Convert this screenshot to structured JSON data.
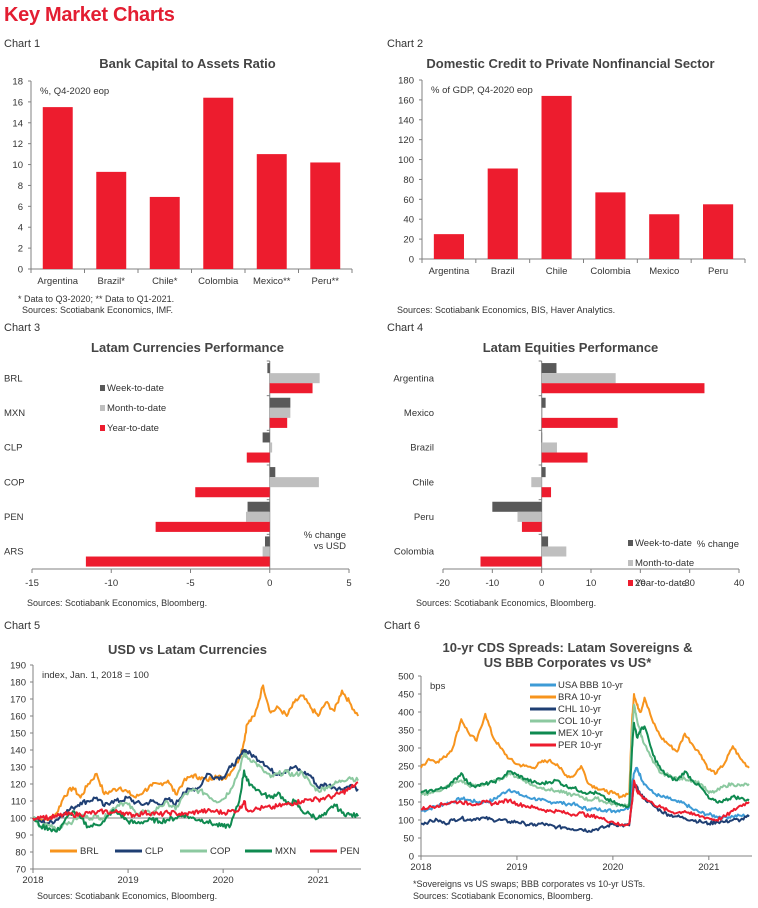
{
  "page": {
    "title": "Key Market Charts"
  },
  "colors": {
    "accent": "#e31e32",
    "bar_red": "#ed1c2e",
    "wtd": "#595959",
    "mtd": "#bfbfbf",
    "axis": "#808080"
  },
  "chart_data": [
    {
      "id": "chart1",
      "label": "Chart 1",
      "type": "bar",
      "title": "Bank Capital to Assets Ratio",
      "unit_label": "%, Q4-2020 eop",
      "categories": [
        "Argentina",
        "Brazil*",
        "Chile*",
        "Colombia",
        "Mexico**",
        "Peru**"
      ],
      "values": [
        15.5,
        9.3,
        6.9,
        16.4,
        11.0,
        10.2
      ],
      "ylim": [
        0,
        18
      ],
      "yticks": [
        0,
        2,
        4,
        6,
        8,
        10,
        12,
        14,
        16,
        18
      ],
      "notes": [
        "* Data to Q3-2020; ** Data to Q1-2021.",
        "Sources: Scotiabank Economics, IMF."
      ]
    },
    {
      "id": "chart2",
      "label": "Chart 2",
      "type": "bar",
      "title": "Domestic Credit to Private Nonfinancial Sector",
      "unit_label": "% of GDP, Q4-2020 eop",
      "categories": [
        "Argentina",
        "Brazil",
        "Chile",
        "Colombia",
        "Mexico",
        "Peru"
      ],
      "values": [
        25,
        91,
        164,
        67,
        45,
        55
      ],
      "ylim": [
        0,
        180
      ],
      "yticks": [
        0,
        20,
        40,
        60,
        80,
        100,
        120,
        140,
        160,
        180
      ],
      "notes": [
        "Sources: Scotiabank Economics, BIS, Haver Analytics."
      ]
    },
    {
      "id": "chart3",
      "label": "Chart 3",
      "type": "bar",
      "orientation": "horizontal",
      "title": "Latam Currencies Performance",
      "categories": [
        "BRL",
        "MXN",
        "CLP",
        "COP",
        "PEN",
        "ARS"
      ],
      "series": [
        {
          "name": "Week-to-date",
          "color": "#595959",
          "values": [
            -0.15,
            1.3,
            -0.45,
            0.35,
            -1.4,
            -0.3
          ]
        },
        {
          "name": "Month-to-date",
          "color": "#bfbfbf",
          "values": [
            3.15,
            1.3,
            0.15,
            3.1,
            -1.5,
            -0.45
          ]
        },
        {
          "name": "Year-to-date",
          "color": "#ed1c2e",
          "values": [
            2.7,
            1.1,
            -1.45,
            -4.7,
            -7.2,
            -11.6
          ]
        }
      ],
      "xlim": [
        -15,
        5
      ],
      "xticks": [
        -15,
        -10,
        -5,
        0,
        5
      ],
      "legend": "upper-left",
      "annotation": [
        "% change",
        "vs USD"
      ],
      "notes": [
        "Sources: Scotiabank Economics, Bloomberg."
      ]
    },
    {
      "id": "chart4",
      "label": "Chart 4",
      "type": "bar",
      "orientation": "horizontal",
      "title": "Latam Equities Performance",
      "categories": [
        "Argentina",
        "Mexico",
        "Brazil",
        "Chile",
        "Peru",
        "Colombia"
      ],
      "series": [
        {
          "name": "Week-to-date",
          "color": "#595959",
          "values": [
            3.0,
            0.8,
            0.0,
            0.8,
            -10.0,
            1.3
          ]
        },
        {
          "name": "Month-to-date",
          "color": "#bfbfbf",
          "values": [
            15.0,
            0.2,
            3.1,
            -2.1,
            -4.9,
            5.0
          ]
        },
        {
          "name": "Year-to-date",
          "color": "#ed1c2e",
          "values": [
            33.0,
            15.4,
            9.3,
            1.9,
            -4.0,
            -12.4
          ]
        }
      ],
      "xlim": [
        -20,
        40
      ],
      "xticks": [
        -20,
        -10,
        0,
        10,
        20,
        30,
        40
      ],
      "legend": "lower-right",
      "annotation": [
        "% change"
      ],
      "notes": [
        "Sources: Scotiabank Economics, Bloomberg."
      ]
    },
    {
      "id": "chart5",
      "label": "Chart 5",
      "type": "line",
      "title": "USD vs Latam Currencies",
      "unit_label": "index, Jan. 1, 2018 = 100",
      "xlim": [
        2018.0,
        2021.45
      ],
      "xticks": [
        2018,
        2019,
        2020,
        2021
      ],
      "ylim": [
        70,
        190
      ],
      "yticks": [
        70,
        80,
        90,
        100,
        110,
        120,
        130,
        140,
        150,
        160,
        170,
        180,
        190
      ],
      "reference_line": 100,
      "legend": "bottom",
      "x": [
        2018.0,
        2018.08,
        2018.17,
        2018.25,
        2018.33,
        2018.42,
        2018.5,
        2018.58,
        2018.67,
        2018.75,
        2018.83,
        2018.92,
        2019.0,
        2019.08,
        2019.17,
        2019.25,
        2019.33,
        2019.42,
        2019.5,
        2019.58,
        2019.67,
        2019.75,
        2019.83,
        2019.92,
        2020.0,
        2020.08,
        2020.17,
        2020.22,
        2020.25,
        2020.33,
        2020.42,
        2020.5,
        2020.58,
        2020.67,
        2020.75,
        2020.83,
        2020.92,
        2021.0,
        2021.08,
        2021.17,
        2021.25,
        2021.33,
        2021.42
      ],
      "series": [
        {
          "name": "BRL",
          "color": "#f7941d",
          "values": [
            100,
            99,
            99,
            103,
            113,
            118,
            112,
            120,
            126,
            114,
            116,
            118,
            115,
            112,
            116,
            119,
            120,
            122,
            114,
            121,
            125,
            124,
            122,
            125,
            123,
            127,
            135,
            145,
            155,
            160,
            178,
            162,
            165,
            160,
            168,
            172,
            165,
            160,
            168,
            163,
            175,
            168,
            160
          ]
        },
        {
          "name": "CLP",
          "color": "#1f3f73",
          "values": [
            100,
            98,
            97,
            99,
            103,
            106,
            109,
            110,
            112,
            107,
            110,
            110,
            112,
            109,
            108,
            110,
            108,
            111,
            108,
            115,
            117,
            118,
            126,
            124,
            124,
            130,
            135,
            140,
            139,
            136,
            133,
            128,
            126,
            128,
            130,
            127,
            125,
            118,
            120,
            118,
            117,
            119,
            117
          ]
        },
        {
          "name": "COP",
          "color": "#8cc9a0",
          "values": [
            100,
            95,
            96,
            93,
            97,
            98,
            102,
            100,
            101,
            100,
            105,
            109,
            108,
            103,
            104,
            102,
            107,
            109,
            105,
            113,
            116,
            116,
            114,
            110,
            111,
            117,
            128,
            138,
            136,
            133,
            128,
            124,
            126,
            127,
            125,
            127,
            120,
            116,
            118,
            120,
            122,
            124,
            122
          ]
        },
        {
          "name": "MXN",
          "color": "#0f8a50",
          "values": [
            100,
            95,
            94,
            92,
            98,
            104,
            100,
            95,
            96,
            98,
            104,
            102,
            98,
            97,
            98,
            99,
            98,
            99,
            100,
            102,
            100,
            99,
            98,
            96,
            95,
            96,
            110,
            128,
            122,
            118,
            114,
            112,
            115,
            108,
            110,
            104,
            102,
            100,
            102,
            108,
            103,
            102,
            101
          ]
        },
        {
          "name": "PEN",
          "color": "#ed1c2e",
          "values": [
            100,
            101,
            100,
            101,
            102,
            102,
            102,
            103,
            103,
            104,
            103,
            104,
            102,
            102,
            103,
            103,
            102,
            103,
            103,
            102,
            103,
            104,
            104,
            104,
            103,
            104,
            105,
            110,
            105,
            105,
            106,
            106,
            107,
            108,
            109,
            110,
            111,
            111,
            112,
            113,
            115,
            117,
            121
          ]
        }
      ],
      "notes": [
        "Sources: Scotiabank Economics, Bloomberg."
      ]
    },
    {
      "id": "chart6",
      "label": "Chart 6",
      "type": "line",
      "title": [
        "10-yr CDS Spreads: Latam Sovereigns &",
        "US BBB Corporates vs US*"
      ],
      "unit_label": "bps",
      "xlim": [
        2018.0,
        2021.45
      ],
      "xticks": [
        2018,
        2019,
        2020,
        2021
      ],
      "ylim": [
        0,
        500
      ],
      "yticks": [
        0,
        50,
        100,
        150,
        200,
        250,
        300,
        350,
        400,
        450,
        500
      ],
      "legend": "top-center",
      "x": [
        2018.0,
        2018.08,
        2018.17,
        2018.25,
        2018.33,
        2018.42,
        2018.5,
        2018.58,
        2018.67,
        2018.75,
        2018.83,
        2018.92,
        2019.0,
        2019.08,
        2019.17,
        2019.25,
        2019.33,
        2019.42,
        2019.5,
        2019.58,
        2019.67,
        2019.75,
        2019.83,
        2019.92,
        2020.0,
        2020.08,
        2020.17,
        2020.2,
        2020.22,
        2020.25,
        2020.29,
        2020.33,
        2020.42,
        2020.5,
        2020.58,
        2020.67,
        2020.75,
        2020.83,
        2020.92,
        2021.0,
        2021.08,
        2021.17,
        2021.25,
        2021.33,
        2021.42
      ],
      "series": [
        {
          "name": "USA BBB 10-yr",
          "color": "#3d9bd6",
          "values": [
            125,
            130,
            140,
            145,
            150,
            160,
            155,
            150,
            150,
            155,
            170,
            185,
            175,
            165,
            160,
            155,
            150,
            150,
            145,
            145,
            135,
            130,
            130,
            128,
            125,
            128,
            135,
            200,
            230,
            245,
            220,
            200,
            175,
            165,
            160,
            150,
            145,
            130,
            120,
            115,
            110,
            108,
            110,
            112,
            112
          ]
        },
        {
          "name": "BRA 10-yr",
          "color": "#f7941d",
          "values": [
            245,
            270,
            262,
            275,
            300,
            380,
            340,
            320,
            395,
            330,
            300,
            270,
            255,
            250,
            245,
            260,
            265,
            255,
            225,
            220,
            250,
            200,
            190,
            180,
            175,
            165,
            175,
            380,
            450,
            420,
            400,
            440,
            370,
            330,
            310,
            290,
            340,
            310,
            280,
            240,
            230,
            260,
            305,
            270,
            245
          ]
        },
        {
          "name": "CHL 10-yr",
          "color": "#1f3f73",
          "values": [
            90,
            95,
            100,
            90,
            100,
            105,
            100,
            105,
            105,
            100,
            100,
            95,
            95,
            90,
            85,
            90,
            85,
            80,
            80,
            75,
            75,
            70,
            75,
            80,
            90,
            85,
            85,
            150,
            200,
            190,
            170,
            160,
            140,
            125,
            115,
            110,
            105,
            100,
            95,
            90,
            95,
            95,
            100,
            100,
            110
          ]
        },
        {
          "name": "COL 10-yr",
          "color": "#8cc9a0",
          "values": [
            170,
            175,
            180,
            190,
            200,
            210,
            195,
            195,
            200,
            205,
            215,
            230,
            220,
            210,
            195,
            190,
            185,
            180,
            175,
            170,
            165,
            155,
            160,
            150,
            145,
            140,
            145,
            350,
            420,
            380,
            340,
            310,
            260,
            230,
            225,
            215,
            215,
            210,
            200,
            175,
            180,
            195,
            200,
            195,
            200
          ]
        },
        {
          "name": "MEX 10-yr",
          "color": "#0f8a50",
          "values": [
            175,
            180,
            185,
            190,
            205,
            230,
            200,
            195,
            200,
            205,
            215,
            235,
            225,
            215,
            205,
            200,
            205,
            210,
            195,
            190,
            180,
            175,
            175,
            160,
            150,
            140,
            140,
            300,
            370,
            330,
            350,
            360,
            280,
            240,
            220,
            210,
            235,
            210,
            190,
            160,
            150,
            155,
            165,
            160,
            155
          ]
        },
        {
          "name": "PER 10-yr",
          "color": "#ed1c2e",
          "values": [
            130,
            135,
            140,
            145,
            150,
            150,
            145,
            145,
            150,
            145,
            150,
            155,
            145,
            140,
            135,
            130,
            125,
            125,
            120,
            115,
            120,
            110,
            110,
            100,
            95,
            85,
            90,
            150,
            210,
            180,
            170,
            160,
            145,
            135,
            125,
            120,
            125,
            115,
            110,
            105,
            100,
            110,
            125,
            140,
            150
          ]
        }
      ],
      "notes": [
        "*Sovereigns vs US swaps; BBB corporates vs 10-yr USTs.",
        "Sources: Scotiabank Economics, Bloomberg."
      ]
    }
  ]
}
